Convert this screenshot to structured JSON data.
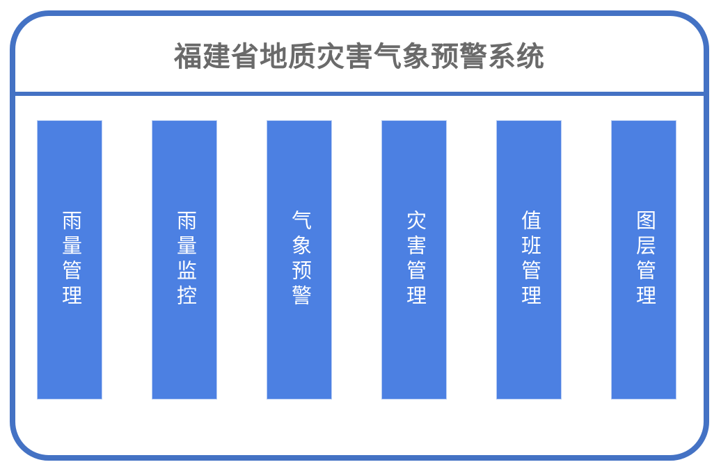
{
  "page": {
    "title": "福建省地质灾害气象预警系统"
  },
  "colors": {
    "frame_border": "#4472C4",
    "divider": "#4472C4",
    "title_text": "#6A6A6A",
    "bar_fill": "#4C80E2",
    "bar_outline": "#B7CCF4",
    "bar_text": "#FFFFFF",
    "background": "#FFFFFF"
  },
  "modules": [
    {
      "label": "雨量管理"
    },
    {
      "label": "雨量监控"
    },
    {
      "label": "气象预警"
    },
    {
      "label": "灾害管理"
    },
    {
      "label": "值班管理"
    },
    {
      "label": "图层管理"
    }
  ]
}
